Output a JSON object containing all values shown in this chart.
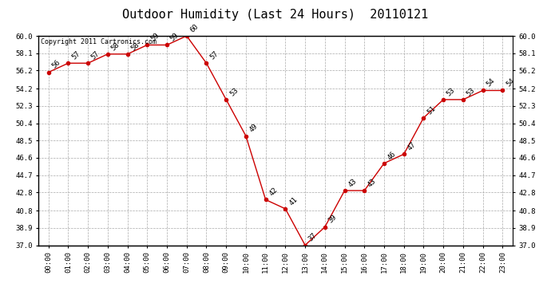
{
  "title": "Outdoor Humidity (Last 24 Hours)  20110121",
  "copyright": "Copyright 2011 Cartronics.com",
  "x_labels": [
    "00:00",
    "01:00",
    "02:00",
    "03:00",
    "04:00",
    "05:00",
    "06:00",
    "07:00",
    "08:00",
    "09:00",
    "10:00",
    "11:00",
    "12:00",
    "13:00",
    "14:00",
    "15:00",
    "16:00",
    "17:00",
    "18:00",
    "19:00",
    "20:00",
    "21:00",
    "22:00",
    "23:00"
  ],
  "y_values": [
    56,
    57,
    57,
    58,
    58,
    59,
    59,
    60,
    57,
    53,
    49,
    42,
    41,
    37,
    39,
    43,
    43,
    46,
    47,
    51,
    53,
    53,
    54,
    54
  ],
  "ylim_min": 37.0,
  "ylim_max": 60.0,
  "y_ticks": [
    37.0,
    38.9,
    40.8,
    42.8,
    44.7,
    46.6,
    48.5,
    50.4,
    52.3,
    54.2,
    56.2,
    58.1,
    60.0
  ],
  "line_color": "#cc0000",
  "marker_color": "#cc0000",
  "marker_size": 3,
  "grid_color": "#aaaaaa",
  "background_color": "#ffffff",
  "title_fontsize": 11,
  "label_fontsize": 6.5,
  "annotation_fontsize": 6.5,
  "copyright_fontsize": 6
}
